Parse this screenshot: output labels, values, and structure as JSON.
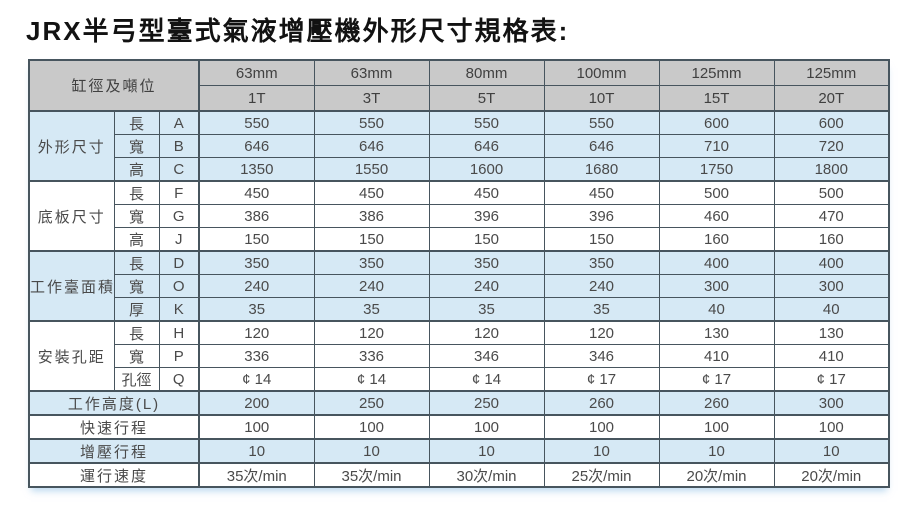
{
  "title": "JRX半弓型臺式氣液增壓機外形尺寸規格表:",
  "table": {
    "corner_label": "缸徑及噸位",
    "columns": [
      {
        "bore": "63mm",
        "tonnage": "1T"
      },
      {
        "bore": "63mm",
        "tonnage": "3T"
      },
      {
        "bore": "80mm",
        "tonnage": "5T"
      },
      {
        "bore": "100mm",
        "tonnage": "10T"
      },
      {
        "bore": "125mm",
        "tonnage": "15T"
      },
      {
        "bore": "125mm",
        "tonnage": "20T"
      }
    ],
    "groups": [
      {
        "label": "外形尺寸",
        "rows": [
          {
            "dim": "長",
            "code": "A",
            "values": [
              "550",
              "550",
              "550",
              "550",
              "600",
              "600"
            ]
          },
          {
            "dim": "寬",
            "code": "B",
            "values": [
              "646",
              "646",
              "646",
              "646",
              "710",
              "720"
            ]
          },
          {
            "dim": "高",
            "code": "C",
            "values": [
              "1350",
              "1550",
              "1600",
              "1680",
              "1750",
              "1800"
            ]
          }
        ]
      },
      {
        "label": "底板尺寸",
        "rows": [
          {
            "dim": "長",
            "code": "F",
            "values": [
              "450",
              "450",
              "450",
              "450",
              "500",
              "500"
            ]
          },
          {
            "dim": "寬",
            "code": "G",
            "values": [
              "386",
              "386",
              "396",
              "396",
              "460",
              "470"
            ]
          },
          {
            "dim": "高",
            "code": "J",
            "values": [
              "150",
              "150",
              "150",
              "150",
              "160",
              "160"
            ]
          }
        ]
      },
      {
        "label": "工作臺面積",
        "rows": [
          {
            "dim": "長",
            "code": "D",
            "values": [
              "350",
              "350",
              "350",
              "350",
              "400",
              "400"
            ]
          },
          {
            "dim": "寬",
            "code": "O",
            "values": [
              "240",
              "240",
              "240",
              "240",
              "300",
              "300"
            ]
          },
          {
            "dim": "厚",
            "code": "K",
            "values": [
              "35",
              "35",
              "35",
              "35",
              "40",
              "40"
            ]
          }
        ]
      },
      {
        "label": "安裝孔距",
        "rows": [
          {
            "dim": "長",
            "code": "H",
            "values": [
              "120",
              "120",
              "120",
              "120",
              "130",
              "130"
            ]
          },
          {
            "dim": "寬",
            "code": "P",
            "values": [
              "336",
              "336",
              "346",
              "346",
              "410",
              "410"
            ]
          },
          {
            "dim": "孔徑",
            "code": "Q",
            "values": [
              "¢ 14",
              "¢ 14",
              "¢ 14",
              "¢ 17",
              "¢ 17",
              "¢ 17"
            ]
          }
        ]
      }
    ],
    "summary_rows": [
      {
        "label": "工作高度(L)",
        "values": [
          "200",
          "250",
          "250",
          "260",
          "260",
          "300"
        ]
      },
      {
        "label": "快速行程",
        "values": [
          "100",
          "100",
          "100",
          "100",
          "100",
          "100"
        ]
      },
      {
        "label": "增壓行程",
        "values": [
          "10",
          "10",
          "10",
          "10",
          "10",
          "10"
        ]
      },
      {
        "label": "運行速度",
        "values": [
          "35次/min",
          "35次/min",
          "30次/min",
          "25次/min",
          "20次/min",
          "20次/min"
        ]
      }
    ]
  },
  "colors": {
    "row_blue": "#d6e9f5",
    "row_white": "#ffffff",
    "header_gray": "#c9c9c9",
    "border": "#47555e"
  }
}
